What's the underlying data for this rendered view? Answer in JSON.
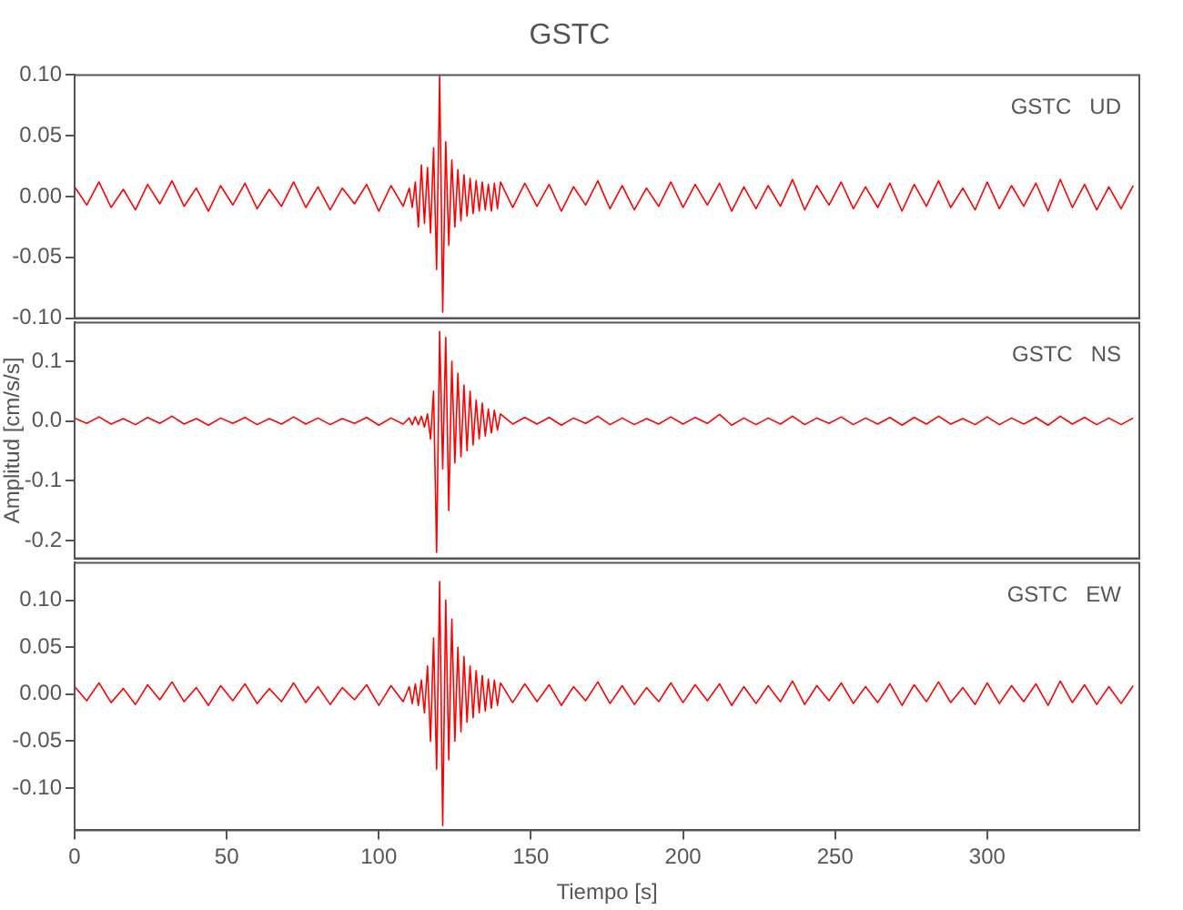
{
  "chart_data": [
    {
      "type": "line",
      "title": "GSTC",
      "x": [
        0,
        4,
        8,
        12,
        16,
        20,
        24,
        28,
        32,
        36,
        40,
        44,
        48,
        52,
        56,
        60,
        64,
        68,
        72,
        76,
        80,
        84,
        88,
        92,
        96,
        100,
        104,
        108,
        110,
        111,
        112,
        113,
        114,
        115,
        116,
        117,
        118,
        119,
        120,
        121,
        122,
        123,
        124,
        125,
        126,
        127,
        128,
        129,
        130,
        131,
        132,
        133,
        134,
        135,
        136,
        137,
        138,
        139,
        140,
        144,
        148,
        152,
        156,
        160,
        164,
        168,
        172,
        176,
        180,
        184,
        188,
        192,
        196,
        200,
        204,
        208,
        212,
        216,
        220,
        224,
        228,
        232,
        236,
        240,
        244,
        248,
        252,
        256,
        260,
        264,
        268,
        272,
        276,
        280,
        284,
        288,
        292,
        296,
        300,
        304,
        308,
        312,
        316,
        320,
        324,
        328,
        332,
        336,
        340,
        344,
        348
      ],
      "series": [
        {
          "color": "#ff0000",
          "values": [
            0.008,
            -0.007,
            0.012,
            -0.009,
            0.006,
            -0.011,
            0.01,
            -0.006,
            0.013,
            -0.008,
            0.007,
            -0.012,
            0.009,
            -0.007,
            0.011,
            -0.01,
            0.006,
            -0.008,
            0.012,
            -0.009,
            0.008,
            -0.011,
            0.007,
            -0.006,
            0.01,
            -0.012,
            0.009,
            -0.008,
            0.007,
            -0.009,
            0.012,
            -0.025,
            0.026,
            -0.022,
            0.024,
            -0.03,
            0.04,
            -0.06,
            0.1,
            -0.095,
            0.045,
            -0.04,
            0.03,
            -0.025,
            0.022,
            -0.02,
            0.018,
            -0.016,
            0.015,
            -0.014,
            0.013,
            -0.012,
            0.012,
            -0.011,
            0.01,
            -0.012,
            0.011,
            -0.01,
            0.012,
            -0.009,
            0.011,
            -0.008,
            0.01,
            -0.012,
            0.008,
            -0.007,
            0.013,
            -0.01,
            0.009,
            -0.011,
            0.007,
            -0.008,
            0.012,
            -0.009,
            0.01,
            -0.007,
            0.011,
            -0.012,
            0.008,
            -0.01,
            0.009,
            -0.008,
            0.014,
            -0.011,
            0.009,
            -0.007,
            0.012,
            -0.01,
            0.008,
            -0.009,
            0.011,
            -0.012,
            0.01,
            -0.008,
            0.013,
            -0.009,
            0.007,
            -0.011,
            0.012,
            -0.01,
            0.009,
            -0.008,
            0.011,
            -0.012,
            0.014,
            -0.009,
            0.01,
            -0.011,
            0.008,
            -0.01,
            0.009
          ]
        }
      ],
      "xlim": [
        0,
        350
      ],
      "xticks": [
        0,
        50,
        100,
        150,
        200,
        250,
        300
      ],
      "ylim": [
        -0.1,
        0.1
      ],
      "yticks": [
        {
          "value": -0.1,
          "label": "-0.10"
        },
        {
          "value": -0.05,
          "label": "-0.05"
        },
        {
          "value": 0,
          "label": "0.00"
        },
        {
          "value": 0.05,
          "label": "0.05"
        },
        {
          "value": 0.1,
          "label": "0.10"
        }
      ],
      "tick_labels": "y",
      "annotations": [
        "GSTC   UD"
      ],
      "grid": false,
      "legend": false,
      "marker": "none"
    },
    {
      "type": "line",
      "ylabel": "Amplitud [cm/s/s]",
      "x": [
        0,
        4,
        8,
        12,
        16,
        20,
        24,
        28,
        32,
        36,
        40,
        44,
        48,
        52,
        56,
        60,
        64,
        68,
        72,
        76,
        80,
        84,
        88,
        92,
        96,
        100,
        104,
        108,
        110,
        111,
        112,
        113,
        114,
        115,
        116,
        117,
        118,
        119,
        120,
        121,
        122,
        123,
        124,
        125,
        126,
        127,
        128,
        129,
        130,
        131,
        132,
        133,
        134,
        135,
        136,
        137,
        138,
        139,
        140,
        144,
        148,
        152,
        156,
        160,
        164,
        168,
        172,
        176,
        180,
        184,
        188,
        192,
        196,
        200,
        204,
        208,
        212,
        216,
        220,
        224,
        228,
        232,
        236,
        240,
        244,
        248,
        252,
        256,
        260,
        264,
        268,
        272,
        276,
        280,
        284,
        288,
        292,
        296,
        300,
        304,
        308,
        312,
        316,
        320,
        324,
        328,
        332,
        336,
        340,
        344,
        348
      ],
      "series": [
        {
          "color": "#ff0000",
          "values": [
            0.005,
            -0.004,
            0.007,
            -0.005,
            0.004,
            -0.006,
            0.006,
            -0.004,
            0.008,
            -0.005,
            0.004,
            -0.007,
            0.005,
            -0.004,
            0.006,
            -0.006,
            0.004,
            -0.005,
            0.007,
            -0.005,
            0.005,
            -0.006,
            0.004,
            -0.004,
            0.006,
            -0.007,
            0.005,
            -0.005,
            0.005,
            -0.006,
            0.007,
            -0.006,
            0.008,
            -0.01,
            0.012,
            -0.03,
            0.05,
            -0.22,
            0.15,
            -0.08,
            0.14,
            -0.15,
            0.1,
            -0.07,
            0.08,
            -0.06,
            0.06,
            -0.05,
            0.05,
            -0.04,
            0.035,
            -0.03,
            0.03,
            -0.025,
            0.02,
            -0.02,
            0.018,
            -0.015,
            0.012,
            -0.005,
            0.006,
            -0.005,
            0.006,
            -0.007,
            0.005,
            -0.004,
            0.008,
            -0.006,
            0.005,
            -0.006,
            0.004,
            -0.005,
            0.007,
            -0.005,
            0.006,
            -0.004,
            0.011,
            -0.007,
            0.005,
            -0.006,
            0.005,
            -0.005,
            0.008,
            -0.006,
            0.005,
            -0.004,
            0.007,
            -0.006,
            0.005,
            -0.005,
            0.006,
            -0.007,
            0.006,
            -0.005,
            0.008,
            -0.005,
            0.004,
            -0.006,
            0.007,
            -0.006,
            0.005,
            -0.005,
            0.006,
            -0.007,
            0.008,
            -0.005,
            0.006,
            -0.006,
            0.005,
            -0.006,
            0.005
          ]
        }
      ],
      "xlim": [
        0,
        350
      ],
      "xticks": [
        0,
        50,
        100,
        150,
        200,
        250,
        300
      ],
      "ylim": [
        -0.23,
        0.165
      ],
      "yticks": [
        {
          "value": -0.2,
          "label": "-0.2"
        },
        {
          "value": -0.1,
          "label": "-0.1"
        },
        {
          "value": 0,
          "label": "0.0"
        },
        {
          "value": 0.1,
          "label": "0.1"
        }
      ],
      "tick_labels": "y",
      "annotations": [
        "GSTC   NS"
      ],
      "grid": false,
      "legend": false,
      "marker": "none"
    },
    {
      "type": "line",
      "xlabel": "Tiempo [s]",
      "x": [
        0,
        4,
        8,
        12,
        16,
        20,
        24,
        28,
        32,
        36,
        40,
        44,
        48,
        52,
        56,
        60,
        64,
        68,
        72,
        76,
        80,
        84,
        88,
        92,
        96,
        100,
        104,
        108,
        110,
        111,
        112,
        113,
        114,
        115,
        116,
        117,
        118,
        119,
        120,
        121,
        122,
        123,
        124,
        125,
        126,
        127,
        128,
        129,
        130,
        131,
        132,
        133,
        134,
        135,
        136,
        137,
        138,
        139,
        140,
        144,
        148,
        152,
        156,
        160,
        164,
        168,
        172,
        176,
        180,
        184,
        188,
        192,
        196,
        200,
        204,
        208,
        212,
        216,
        220,
        224,
        228,
        232,
        236,
        240,
        244,
        248,
        252,
        256,
        260,
        264,
        268,
        272,
        276,
        280,
        284,
        288,
        292,
        296,
        300,
        304,
        308,
        312,
        316,
        320,
        324,
        328,
        332,
        336,
        340,
        344,
        348
      ],
      "series": [
        {
          "color": "#ff0000",
          "values": [
            0.008,
            -0.007,
            0.012,
            -0.009,
            0.006,
            -0.011,
            0.01,
            -0.006,
            0.013,
            -0.008,
            0.007,
            -0.012,
            0.009,
            -0.007,
            0.011,
            -0.01,
            0.006,
            -0.008,
            0.012,
            -0.009,
            0.008,
            -0.011,
            0.007,
            -0.006,
            0.01,
            -0.012,
            0.009,
            -0.008,
            0.008,
            -0.01,
            0.011,
            -0.012,
            0.015,
            -0.02,
            0.03,
            -0.05,
            0.06,
            -0.08,
            0.12,
            -0.14,
            0.1,
            -0.07,
            0.08,
            -0.05,
            0.05,
            -0.04,
            0.04,
            -0.03,
            0.03,
            -0.025,
            0.025,
            -0.02,
            0.02,
            -0.018,
            0.016,
            -0.015,
            0.015,
            -0.012,
            0.012,
            -0.009,
            0.011,
            -0.008,
            0.01,
            -0.012,
            0.008,
            -0.007,
            0.013,
            -0.01,
            0.009,
            -0.011,
            0.007,
            -0.008,
            0.012,
            -0.009,
            0.01,
            -0.007,
            0.011,
            -0.012,
            0.008,
            -0.01,
            0.009,
            -0.008,
            0.014,
            -0.011,
            0.009,
            -0.007,
            0.012,
            -0.01,
            0.008,
            -0.009,
            0.011,
            -0.012,
            0.01,
            -0.008,
            0.013,
            -0.009,
            0.007,
            -0.011,
            0.012,
            -0.01,
            0.009,
            -0.008,
            0.011,
            -0.012,
            0.014,
            -0.009,
            0.01,
            -0.011,
            0.008,
            -0.01,
            0.009
          ]
        }
      ],
      "xlim": [
        0,
        350
      ],
      "xticks": [
        0,
        50,
        100,
        150,
        200,
        250,
        300
      ],
      "ylim": [
        -0.145,
        0.14
      ],
      "yticks": [
        {
          "value": -0.1,
          "label": "-0.10"
        },
        {
          "value": -0.05,
          "label": "-0.05"
        },
        {
          "value": 0,
          "label": "0.00"
        },
        {
          "value": 0.05,
          "label": "0.05"
        },
        {
          "value": 0.1,
          "label": "0.10"
        }
      ],
      "annotations": [
        "GSTC   EW"
      ],
      "grid": false,
      "legend": false,
      "marker": "none"
    }
  ]
}
